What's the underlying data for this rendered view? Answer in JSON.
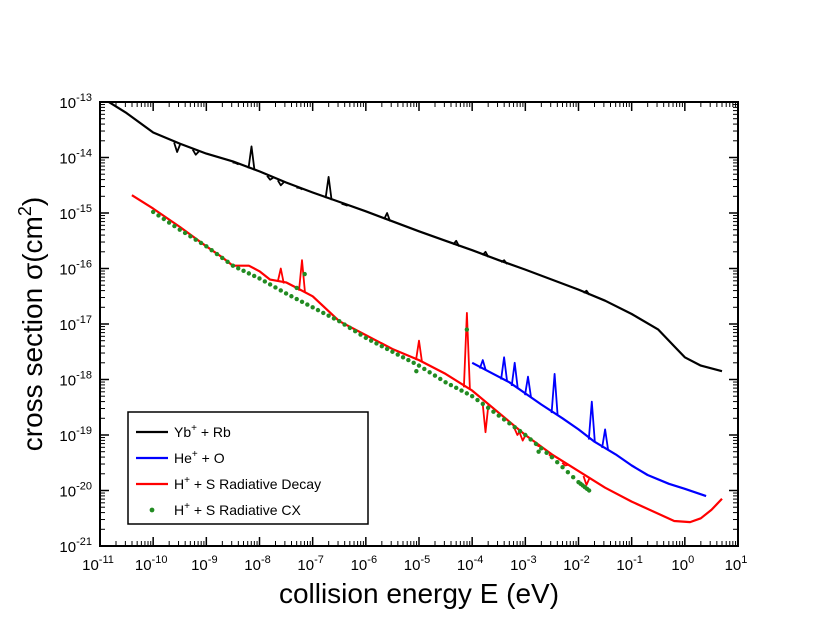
{
  "chart_data": {
    "type": "line",
    "title": "",
    "xlabel": "collision energy E (eV)",
    "ylabel": "cross section σ(cm",
    "ylabel_exponent": "2",
    "ylabel_close": ")",
    "xscale": "log",
    "yscale": "log",
    "xlim_exp": [
      -11,
      1
    ],
    "ylim_exp": [
      -21,
      -13
    ],
    "tick_base": "10",
    "x_tick_exponents": [
      "-11",
      "-10",
      "-9",
      "-8",
      "-7",
      "-6",
      "-5",
      "-4",
      "-3",
      "-2",
      "-1",
      "0",
      "1"
    ],
    "y_tick_exponents": [
      "-21",
      "-20",
      "-19",
      "-18",
      "-17",
      "-16",
      "-15",
      "-14",
      "-13"
    ],
    "legend_position": "bottom-left",
    "series": [
      {
        "name": "Yb+ + Rb",
        "legend_parts": [
          "Yb",
          "+",
          " + Rb"
        ],
        "color": "#000000",
        "style": "line",
        "points": [
          [
            -11,
            -12.9
          ],
          [
            -10.5,
            -13.2
          ],
          [
            -10,
            -13.55
          ],
          [
            -9.5,
            -13.75
          ],
          [
            -9,
            -13.93
          ],
          [
            -8.5,
            -14.07
          ],
          [
            -8,
            -14.25
          ],
          [
            -7.5,
            -14.45
          ],
          [
            -7,
            -14.63
          ],
          [
            -6.5,
            -14.8
          ],
          [
            -6,
            -14.97
          ],
          [
            -5.5,
            -15.15
          ],
          [
            -5,
            -15.33
          ],
          [
            -4.5,
            -15.5
          ],
          [
            -4,
            -15.67
          ],
          [
            -3.5,
            -15.85
          ],
          [
            -3,
            -16.02
          ],
          [
            -2.5,
            -16.2
          ],
          [
            -2,
            -16.38
          ],
          [
            -1.5,
            -16.58
          ],
          [
            -1,
            -16.82
          ],
          [
            -0.5,
            -17.1
          ],
          [
            -0.2,
            -17.4
          ],
          [
            0,
            -17.6
          ],
          [
            0.3,
            -17.75
          ],
          [
            0.7,
            -17.85
          ]
        ],
        "peaks": [
          [
            -9.55,
            -13.9
          ],
          [
            -9.2,
            -13.95
          ],
          [
            -8.45,
            -14.1
          ],
          [
            -8.15,
            -13.8
          ],
          [
            -7.8,
            -14.4
          ],
          [
            -7.6,
            -14.5
          ],
          [
            -7.25,
            -14.55
          ],
          [
            -6.7,
            -14.35
          ],
          [
            -6.4,
            -14.85
          ],
          [
            -5.6,
            -15.0
          ],
          [
            -4.3,
            -15.5
          ],
          [
            -3.75,
            -15.7
          ],
          [
            -3.4,
            -15.85
          ],
          [
            -1.85,
            -16.4
          ]
        ]
      },
      {
        "name": "He+ + O",
        "legend_parts": [
          "He",
          "+",
          " + O"
        ],
        "color": "#0000ff",
        "style": "line",
        "points": [
          [
            -4,
            -17.7
          ],
          [
            -3.7,
            -17.85
          ],
          [
            -3.3,
            -18.05
          ],
          [
            -3,
            -18.25
          ],
          [
            -2.7,
            -18.45
          ],
          [
            -2.3,
            -18.7
          ],
          [
            -2,
            -18.9
          ],
          [
            -1.7,
            -19.12
          ],
          [
            -1.3,
            -19.35
          ],
          [
            -1,
            -19.55
          ],
          [
            -0.7,
            -19.72
          ],
          [
            -0.3,
            -19.88
          ],
          [
            0,
            -19.97
          ],
          [
            0.4,
            -20.1
          ]
        ],
        "peaks": [
          [
            -3.8,
            -17.65
          ],
          [
            -3.4,
            -17.6
          ],
          [
            -3.2,
            -17.7
          ],
          [
            -2.95,
            -17.95
          ],
          [
            -2.45,
            -17.9
          ],
          [
            -1.75,
            -18.4
          ],
          [
            -1.5,
            -18.9
          ]
        ]
      },
      {
        "name": "H+ + S Radiative Decay",
        "legend_parts": [
          "H",
          "+",
          " + S Radiative Decay"
        ],
        "color": "#ff0000",
        "style": "line",
        "points": [
          [
            -10.4,
            -14.68
          ],
          [
            -10,
            -14.92
          ],
          [
            -9.5,
            -15.25
          ],
          [
            -9,
            -15.6
          ],
          [
            -8.7,
            -15.8
          ],
          [
            -8.5,
            -15.95
          ],
          [
            -8.2,
            -15.95
          ],
          [
            -8,
            -16.05
          ],
          [
            -7.8,
            -16.2
          ],
          [
            -7.5,
            -16.25
          ],
          [
            -7.3,
            -16.35
          ],
          [
            -7,
            -16.5
          ],
          [
            -6.5,
            -16.95
          ],
          [
            -6,
            -17.2
          ],
          [
            -5.5,
            -17.45
          ],
          [
            -5,
            -17.65
          ],
          [
            -4.5,
            -17.9
          ],
          [
            -4,
            -18.2
          ],
          [
            -3.5,
            -18.6
          ],
          [
            -3,
            -19.0
          ],
          [
            -2.5,
            -19.35
          ],
          [
            -2,
            -19.65
          ],
          [
            -1.5,
            -19.95
          ],
          [
            -1,
            -20.2
          ],
          [
            -0.5,
            -20.42
          ],
          [
            -0.2,
            -20.55
          ],
          [
            0.1,
            -20.57
          ],
          [
            0.3,
            -20.5
          ],
          [
            0.5,
            -20.35
          ],
          [
            0.7,
            -20.15
          ]
        ],
        "peaks": [
          [
            -7.6,
            -16.0
          ],
          [
            -7.2,
            -15.85
          ],
          [
            -5.0,
            -17.3
          ],
          [
            -4.1,
            -16.8
          ],
          [
            -3.75,
            -18.95
          ],
          [
            -3.15,
            -19.0
          ],
          [
            -3.05,
            -19.1
          ],
          [
            -2.75,
            -19.2
          ],
          [
            -2.5,
            -19.4
          ],
          [
            -2.25,
            -19.55
          ],
          [
            -1.85,
            -19.9
          ]
        ]
      },
      {
        "name": "H+ + S Radiative CX",
        "legend_parts": [
          "H",
          "+",
          " + S Radiative CX"
        ],
        "color": "#228b22",
        "style": "dots",
        "points": [
          [
            -10,
            -14.98
          ],
          [
            -9.5,
            -15.3
          ],
          [
            -9,
            -15.6
          ],
          [
            -8.5,
            -15.95
          ],
          [
            -8,
            -16.18
          ],
          [
            -7.5,
            -16.45
          ],
          [
            -7,
            -16.7
          ],
          [
            -6.5,
            -16.95
          ],
          [
            -6,
            -17.25
          ],
          [
            -5.5,
            -17.5
          ],
          [
            -5,
            -17.75
          ],
          [
            -4.5,
            -18.05
          ],
          [
            -4,
            -18.3
          ],
          [
            -3.5,
            -18.65
          ],
          [
            -3,
            -19.0
          ],
          [
            -2.5,
            -19.4
          ],
          [
            -2,
            -19.85
          ],
          [
            -1.8,
            -20.0
          ]
        ],
        "outliers": [
          [
            -7.3,
            -16.35
          ],
          [
            -7.15,
            -16.1
          ],
          [
            -5.05,
            -17.85
          ],
          [
            -4.1,
            -17.1
          ],
          [
            -2.75,
            -19.3
          ]
        ]
      }
    ]
  }
}
